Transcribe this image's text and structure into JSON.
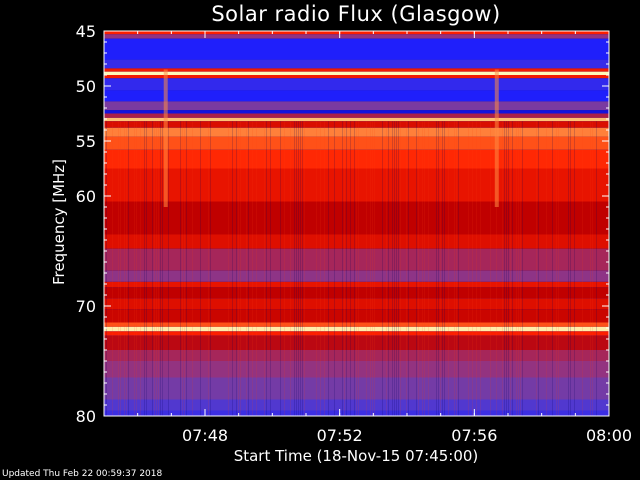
{
  "title": "Solar radio Flux (Glasgow)",
  "footer": "Updated Thu Feb 22 00:59:37 2018",
  "chart_data": {
    "type": "heatmap",
    "title": "Solar radio Flux (Glasgow)",
    "xlabel": "Start Time (18-Nov-15 07:45:00)",
    "ylabel": "Frequency [MHz]",
    "x_range": [
      "07:45",
      "08:00"
    ],
    "y_range": [
      45,
      80
    ],
    "y_inverted": true,
    "x_ticks": [
      "07:48",
      "07:52",
      "07:56",
      "08:00"
    ],
    "y_ticks": [
      45,
      50,
      55,
      60,
      70,
      80
    ],
    "colormap": [
      "#0000a0",
      "#2020ff",
      "#6040c0",
      "#a03070",
      "#c00000",
      "#ff2000",
      "#ff6020",
      "#ffb060",
      "#ffffc0"
    ],
    "frequency_bands": [
      {
        "from": 45.0,
        "to": 45.3,
        "level": 0.62
      },
      {
        "from": 45.3,
        "to": 45.7,
        "level": 0.35
      },
      {
        "from": 45.7,
        "to": 47.6,
        "level": 0.12
      },
      {
        "from": 47.6,
        "to": 48.4,
        "level": 0.17
      },
      {
        "from": 48.4,
        "to": 48.7,
        "level": 0.6
      },
      {
        "from": 48.7,
        "to": 49.0,
        "level": 0.99
      },
      {
        "from": 49.0,
        "to": 49.3,
        "level": 0.6
      },
      {
        "from": 49.3,
        "to": 50.4,
        "level": 0.16
      },
      {
        "from": 50.4,
        "to": 51.4,
        "level": 0.12
      },
      {
        "from": 51.4,
        "to": 52.2,
        "level": 0.3
      },
      {
        "from": 52.2,
        "to": 52.5,
        "level": 0.08
      },
      {
        "from": 52.5,
        "to": 52.9,
        "level": 0.42
      },
      {
        "from": 52.9,
        "to": 53.2,
        "level": 0.9
      },
      {
        "from": 53.2,
        "to": 53.8,
        "level": 0.55
      },
      {
        "from": 53.8,
        "to": 54.6,
        "level": 0.8
      },
      {
        "from": 54.6,
        "to": 55.8,
        "level": 0.72
      },
      {
        "from": 55.8,
        "to": 57.5,
        "level": 0.64
      },
      {
        "from": 57.5,
        "to": 60.5,
        "level": 0.58
      },
      {
        "from": 60.5,
        "to": 63.5,
        "level": 0.5
      },
      {
        "from": 63.5,
        "to": 64.8,
        "level": 0.56
      },
      {
        "from": 64.8,
        "to": 66.8,
        "level": 0.4
      },
      {
        "from": 66.8,
        "to": 67.8,
        "level": 0.34
      },
      {
        "from": 67.8,
        "to": 68.3,
        "level": 0.58
      },
      {
        "from": 68.3,
        "to": 69.3,
        "level": 0.5
      },
      {
        "from": 69.3,
        "to": 70.3,
        "level": 0.56
      },
      {
        "from": 70.3,
        "to": 71.5,
        "level": 0.52
      },
      {
        "from": 71.5,
        "to": 71.9,
        "level": 0.72
      },
      {
        "from": 71.9,
        "to": 72.3,
        "level": 0.97
      },
      {
        "from": 72.3,
        "to": 72.7,
        "level": 0.62
      },
      {
        "from": 72.7,
        "to": 74.0,
        "level": 0.48
      },
      {
        "from": 74.0,
        "to": 75.0,
        "level": 0.4
      },
      {
        "from": 75.0,
        "to": 76.5,
        "level": 0.35
      },
      {
        "from": 76.5,
        "to": 78.5,
        "level": 0.29
      },
      {
        "from": 78.5,
        "to": 79.5,
        "level": 0.22
      },
      {
        "from": 79.5,
        "to": 80.0,
        "level": 0.18
      }
    ],
    "vertical_features": [
      {
        "time": "07:46:50",
        "level": 0.82,
        "from": 48.5,
        "to": 61.0
      },
      {
        "time": "07:56:40",
        "level": 0.82,
        "from": 48.5,
        "to": 61.0
      }
    ]
  }
}
